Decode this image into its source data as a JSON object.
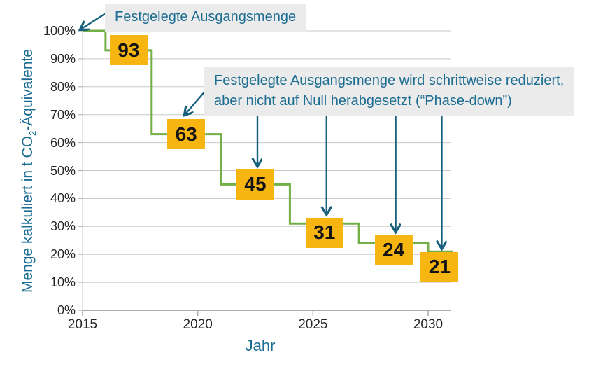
{
  "axes": {
    "y_title_pre": "Menge kalkuliert in t CO",
    "y_title_sub": "2",
    "y_title_post": "-Äquivalente",
    "x_title": "Jahr",
    "y_tick_labels": [
      "100%",
      "90%",
      "80%",
      "70%",
      "60%",
      "50%",
      "40%",
      "30%",
      "20%",
      "10%",
      "0%"
    ],
    "x_tick_labels": [
      "2015",
      "2020",
      "2025",
      "2030"
    ]
  },
  "annotations": {
    "start_label": "Festgelegte Ausgangsmenge",
    "phasedown_line1": "Festgelegte Ausgangsmenge wird schrittweise reduziert,",
    "phasedown_line2": "aber nicht auf Null herabgesetzt (“Phase-down”)"
  },
  "chart_data": {
    "type": "line",
    "subtype": "step",
    "title": "",
    "xlabel": "Jahr",
    "ylabel": "Menge kalkuliert in t CO2-Äquivalente",
    "grid": true,
    "x_range": [
      2015,
      2031
    ],
    "ylim": [
      0,
      100
    ],
    "y_tick_step_pct": 10,
    "x_ticks_years": [
      2015,
      2020,
      2025,
      2030
    ],
    "categories": [
      "2015",
      "2016–2017",
      "2018–2020",
      "2021–2023",
      "2024–2026",
      "2027–2029",
      "2030"
    ],
    "values_pct": [
      100,
      93,
      63,
      45,
      31,
      24,
      21
    ],
    "steps": [
      {
        "from_year": 2015,
        "to_year": 2016,
        "value_pct": 100,
        "label": ""
      },
      {
        "from_year": 2016,
        "to_year": 2018,
        "value_pct": 93,
        "label": "93"
      },
      {
        "from_year": 2018,
        "to_year": 2021,
        "value_pct": 63,
        "label": "63"
      },
      {
        "from_year": 2021,
        "to_year": 2024,
        "value_pct": 45,
        "label": "45"
      },
      {
        "from_year": 2024,
        "to_year": 2027,
        "value_pct": 31,
        "label": "31"
      },
      {
        "from_year": 2027,
        "to_year": 2030,
        "value_pct": 24,
        "label": "24"
      },
      {
        "from_year": 2030,
        "to_year": 2031,
        "value_pct": 21,
        "label": "21"
      }
    ]
  },
  "colors": {
    "line_green": "#72AF45",
    "label_yellow": "#F7B511",
    "text_teal": "#1C6D92",
    "arrow_teal": "#17607D",
    "grid_gray": "#C8C8C8",
    "axis_gray": "#ABABAB",
    "annotation_bg": "#EBEBEB"
  }
}
